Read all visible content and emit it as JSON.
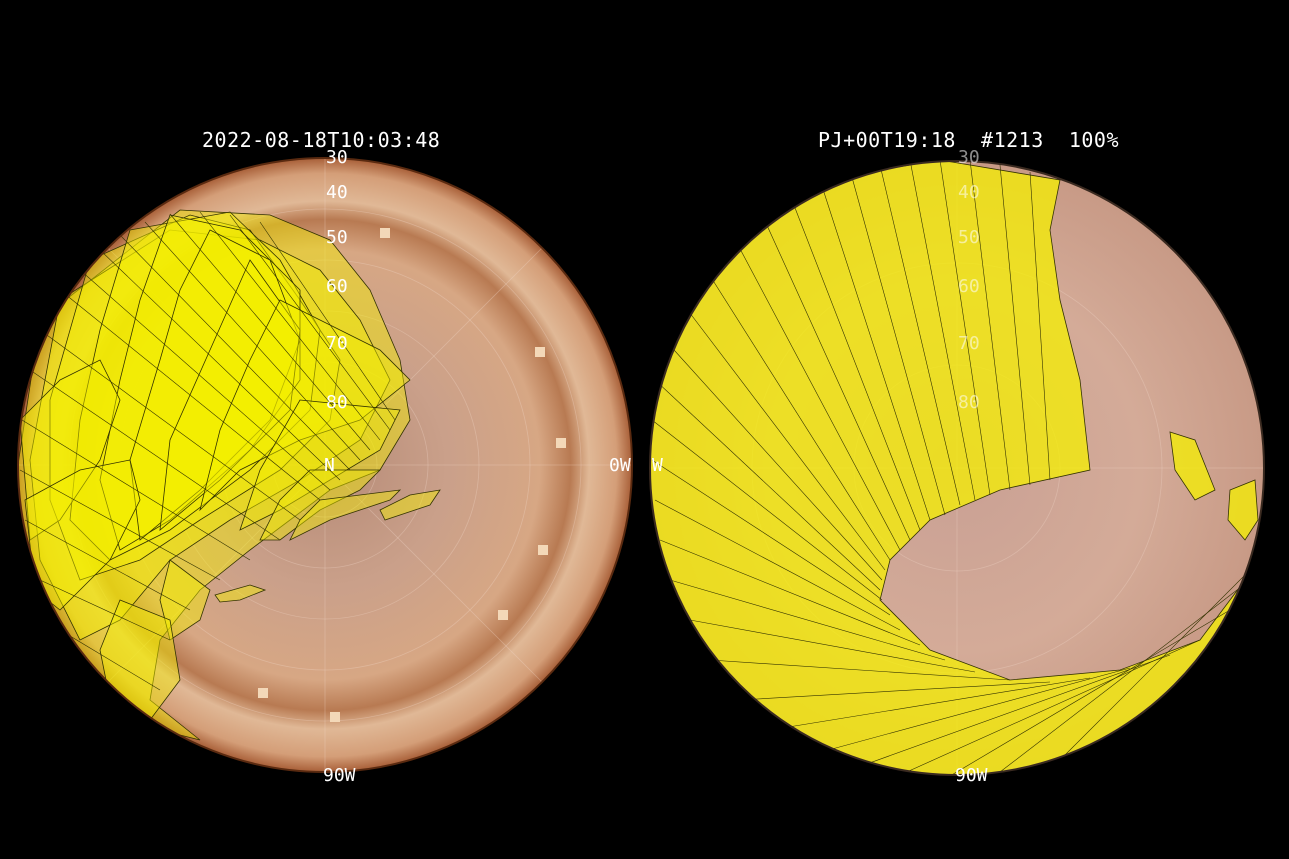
{
  "left_panel": {
    "title": "2022-08-18T10:03:48",
    "latitude_labels": [
      "30",
      "40",
      "50",
      "60",
      "70",
      "80"
    ],
    "pole_label": "N",
    "lon_label_east": "0W",
    "lon_label_south": "90W"
  },
  "right_panel": {
    "title": "PJ+00T19:18  #1213  100%",
    "latitude_labels": [
      "30",
      "40",
      "50",
      "60",
      "70",
      "80"
    ],
    "lon_label_west": "W",
    "lon_label_south": "90W"
  },
  "colors": {
    "background": "#000000",
    "planet_base": "#d6a784",
    "planet_dark": "#a86a43",
    "footprint_fill": "#f5f000",
    "footprint_stroke": "#333300",
    "grid": "#f0d8c8"
  }
}
